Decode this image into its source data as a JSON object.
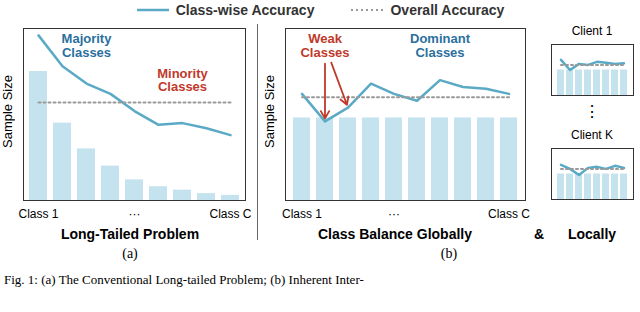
{
  "figure": {
    "legend": "top",
    "connector": "&",
    "right_title": "Locally",
    "dots": "⋮",
    "group_label": "(b)",
    "caption": "Fig. 1: (a) The Conventional Long-tailed Problem; (b) Inherent Inter-"
  },
  "chart_data": [
    {
      "type": "bar",
      "title": "Long-Tailed Problem",
      "subtitle": "(a)",
      "y_label": "Sample Size",
      "categories": [
        "Class 1",
        null,
        null,
        null,
        "···",
        null,
        null,
        null,
        "Class C"
      ],
      "ylim": [
        0,
        100
      ],
      "yticks": [],
      "tick_labels": "x",
      "series": [
        {
          "type": "bar",
          "color": "#c5e3ee",
          "values": [
            75,
            45,
            30,
            20,
            12,
            8,
            6,
            4,
            3
          ]
        },
        {
          "name": "Class-wise Accuracy",
          "type": "line",
          "color": "#5aaac6",
          "line_style": "solid",
          "values": [
            96,
            78,
            68,
            62,
            52,
            44,
            45,
            42,
            38
          ]
        },
        {
          "name": "Overall Accuracy",
          "type": "line",
          "color": "#999999",
          "line_style": "dotted",
          "values": [
            57,
            57,
            57,
            57,
            57,
            57,
            57,
            57,
            57
          ]
        }
      ],
      "annotations": [
        {
          "text": "Majority Classes",
          "x": 2,
          "y": 90,
          "color": "#2a6f9e"
        },
        {
          "text": "Minority Classes",
          "x": 6,
          "y": 70,
          "color": "#c0392b"
        }
      ]
    },
    {
      "type": "bar",
      "title": "Class Balance Globally",
      "y_label": "Sample Size",
      "categories": [
        "Class 1",
        null,
        null,
        null,
        "···",
        null,
        null,
        null,
        null,
        "Class C"
      ],
      "ylim": [
        0,
        100
      ],
      "yticks": [],
      "tick_labels": "x",
      "series": [
        {
          "type": "bar",
          "color": "#c5e3ee",
          "values": [
            48,
            48,
            48,
            48,
            48,
            48,
            48,
            48,
            48,
            48
          ]
        },
        {
          "name": "Class-wise Accuracy",
          "type": "line",
          "color": "#5aaac6",
          "line_style": "solid",
          "values": [
            62,
            46,
            54,
            68,
            62,
            58,
            70,
            66,
            65,
            62
          ]
        },
        {
          "name": "Overall Accuracy",
          "type": "line",
          "color": "#999999",
          "line_style": "dotted",
          "values": [
            60,
            60,
            60,
            60,
            60,
            60,
            60,
            60,
            60,
            60
          ]
        }
      ],
      "annotations": [
        {
          "text": "Weak Classes",
          "x": 1,
          "y": 90,
          "color": "#c0392b",
          "points": [
            1,
            2
          ]
        },
        {
          "text": "Dominant Classes",
          "x": 6,
          "y": 90,
          "color": "#2a6f9e"
        }
      ]
    },
    {
      "type": "bar",
      "title": "Client 1",
      "categories": [
        null,
        null,
        null,
        null,
        null,
        null,
        null,
        null
      ],
      "ylim": [
        0,
        100
      ],
      "yticks": [],
      "tick_labels": false,
      "series": [
        {
          "type": "bar",
          "color": "#c5e3ee",
          "values": [
            50,
            50,
            50,
            50,
            50,
            50,
            50,
            50
          ]
        },
        {
          "name": "Class-wise Accuracy",
          "type": "line",
          "color": "#5aaac6",
          "line_style": "solid",
          "values": [
            70,
            50,
            62,
            60,
            66,
            64,
            62,
            63
          ]
        },
        {
          "name": "Overall Accuracy",
          "type": "line",
          "color": "#999999",
          "line_style": "dotted",
          "values": [
            60,
            60,
            60,
            60,
            60,
            60,
            60,
            60
          ]
        }
      ]
    },
    {
      "type": "bar",
      "title": "Client K",
      "categories": [
        null,
        null,
        null,
        null,
        null,
        null,
        null,
        null
      ],
      "ylim": [
        0,
        100
      ],
      "yticks": [],
      "tick_labels": false,
      "series": [
        {
          "type": "bar",
          "color": "#c5e3ee",
          "values": [
            50,
            50,
            50,
            50,
            50,
            50,
            50,
            50
          ]
        },
        {
          "name": "Class-wise Accuracy",
          "type": "line",
          "color": "#5aaac6",
          "line_style": "solid",
          "values": [
            68,
            60,
            48,
            62,
            64,
            60,
            66,
            62
          ]
        },
        {
          "name": "Overall Accuracy",
          "type": "line",
          "color": "#999999",
          "line_style": "dotted",
          "values": [
            60,
            60,
            60,
            60,
            60,
            60,
            60,
            60
          ]
        }
      ]
    }
  ]
}
